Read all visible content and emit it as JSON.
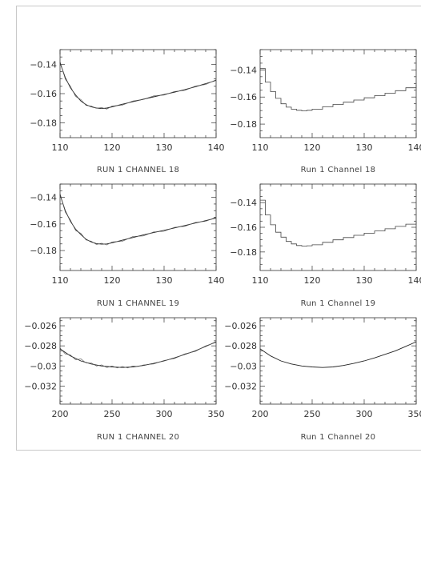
{
  "chart_data": [
    {
      "type": "line",
      "caption": "RUN 1 CHANNEL 18",
      "xlim": [
        110,
        140
      ],
      "ylim": [
        -0.19,
        -0.13
      ],
      "xticks": [
        110,
        120,
        130,
        140
      ],
      "xtick_labels": [
        "110",
        "120",
        "130",
        "140"
      ],
      "yticks": [
        -0.18,
        -0.16,
        -0.14
      ],
      "ytick_labels": [
        "-0.18",
        "-0.16",
        "-0.14"
      ],
      "series": [
        {
          "style": "line",
          "x": [
            110,
            111,
            112,
            113,
            114,
            115,
            116,
            117,
            118,
            119,
            120,
            122,
            124,
            126,
            128,
            130,
            132,
            134,
            136,
            138,
            140
          ],
          "y": [
            -0.139,
            -0.149,
            -0.156,
            -0.161,
            -0.165,
            -0.1675,
            -0.169,
            -0.1698,
            -0.1702,
            -0.1698,
            -0.169,
            -0.1672,
            -0.1655,
            -0.1638,
            -0.1622,
            -0.1606,
            -0.159,
            -0.1572,
            -0.1553,
            -0.1532,
            -0.151
          ]
        },
        {
          "style": "noise",
          "x": [
            110,
            111,
            112,
            113,
            114,
            115,
            116,
            117,
            118,
            119,
            120,
            122,
            124,
            126,
            128,
            130,
            132,
            134,
            136,
            138,
            140
          ],
          "y": [
            -0.138,
            -0.15,
            -0.155,
            -0.162,
            -0.164,
            -0.168,
            -0.1685,
            -0.17,
            -0.1695,
            -0.1705,
            -0.1685,
            -0.1678,
            -0.165,
            -0.164,
            -0.1615,
            -0.161,
            -0.1585,
            -0.1578,
            -0.1548,
            -0.1538,
            -0.1505
          ]
        }
      ]
    },
    {
      "type": "line",
      "caption": "Run 1 Channel 18",
      "xlim": [
        110,
        140
      ],
      "ylim": [
        -0.19,
        -0.125
      ],
      "xticks": [
        110,
        120,
        130,
        140
      ],
      "xtick_labels": [
        "110",
        "120",
        "130",
        "140"
      ],
      "yticks": [
        -0.18,
        -0.16,
        -0.14
      ],
      "ytick_labels": [
        "-0.18",
        "-0.16",
        "-0.14"
      ],
      "series": [
        {
          "style": "step",
          "x": [
            110,
            111,
            112,
            113,
            114,
            115,
            116,
            117,
            118,
            119,
            120,
            122,
            124,
            126,
            128,
            130,
            132,
            134,
            136,
            138,
            140
          ],
          "y": [
            -0.139,
            -0.149,
            -0.156,
            -0.161,
            -0.165,
            -0.1675,
            -0.169,
            -0.1698,
            -0.1702,
            -0.1698,
            -0.169,
            -0.1672,
            -0.1655,
            -0.1638,
            -0.1622,
            -0.1606,
            -0.159,
            -0.1572,
            -0.1553,
            -0.1532,
            -0.151
          ]
        }
      ]
    },
    {
      "type": "line",
      "caption": "RUN 1 CHANNEL 19",
      "xlim": [
        110,
        140
      ],
      "ylim": [
        -0.195,
        -0.13
      ],
      "xticks": [
        110,
        120,
        130,
        140
      ],
      "xtick_labels": [
        "110",
        "120",
        "130",
        "140"
      ],
      "yticks": [
        -0.18,
        -0.16,
        -0.14
      ],
      "ytick_labels": [
        "-0.18",
        "-0.16",
        "-0.14"
      ],
      "series": [
        {
          "style": "line",
          "x": [
            110,
            111,
            112,
            113,
            114,
            115,
            116,
            117,
            118,
            119,
            120,
            122,
            124,
            126,
            128,
            130,
            132,
            134,
            136,
            138,
            140
          ],
          "y": [
            -0.138,
            -0.15,
            -0.158,
            -0.164,
            -0.168,
            -0.1715,
            -0.1735,
            -0.1748,
            -0.1752,
            -0.175,
            -0.1742,
            -0.1722,
            -0.1702,
            -0.1683,
            -0.1665,
            -0.1648,
            -0.163,
            -0.1612,
            -0.1593,
            -0.1575,
            -0.1555
          ]
        },
        {
          "style": "noise",
          "x": [
            110,
            111,
            112,
            113,
            114,
            115,
            116,
            117,
            118,
            119,
            120,
            122,
            124,
            126,
            128,
            130,
            132,
            134,
            136,
            138,
            140
          ],
          "y": [
            -0.137,
            -0.151,
            -0.157,
            -0.165,
            -0.167,
            -0.172,
            -0.173,
            -0.1755,
            -0.1745,
            -0.1758,
            -0.1735,
            -0.173,
            -0.1695,
            -0.169,
            -0.166,
            -0.1655,
            -0.1625,
            -0.1618,
            -0.1588,
            -0.158,
            -0.155
          ]
        }
      ]
    },
    {
      "type": "line",
      "caption": "Run 1 Channel 19",
      "xlim": [
        110,
        140
      ],
      "ylim": [
        -0.195,
        -0.125
      ],
      "xticks": [
        110,
        120,
        130,
        140
      ],
      "xtick_labels": [
        "110",
        "120",
        "130",
        "140"
      ],
      "yticks": [
        -0.18,
        -0.16,
        -0.14
      ],
      "ytick_labels": [
        "-0.18",
        "-0.16",
        "-0.14"
      ],
      "series": [
        {
          "style": "step",
          "x": [
            110,
            111,
            112,
            113,
            114,
            115,
            116,
            117,
            118,
            119,
            120,
            122,
            124,
            126,
            128,
            130,
            132,
            134,
            136,
            138,
            140
          ],
          "y": [
            -0.138,
            -0.15,
            -0.158,
            -0.164,
            -0.168,
            -0.1715,
            -0.1735,
            -0.1748,
            -0.1752,
            -0.175,
            -0.1742,
            -0.1722,
            -0.1702,
            -0.1683,
            -0.1665,
            -0.1648,
            -0.163,
            -0.1612,
            -0.1593,
            -0.1575,
            -0.1555
          ]
        }
      ]
    },
    {
      "type": "line",
      "caption": "RUN 1 CHANNEL 20",
      "xlim": [
        200,
        350
      ],
      "ylim": [
        -0.0338,
        -0.0252
      ],
      "xticks": [
        200,
        250,
        300,
        350
      ],
      "xtick_labels": [
        "200",
        "250",
        "300",
        "350"
      ],
      "yticks": [
        -0.032,
        -0.03,
        -0.028,
        -0.026
      ],
      "ytick_labels": [
        "-0.032",
        "-0.03",
        "-0.028",
        "-0.026"
      ],
      "series": [
        {
          "style": "line",
          "x": [
            200,
            210,
            220,
            230,
            240,
            250,
            260,
            270,
            280,
            290,
            300,
            310,
            320,
            330,
            340,
            350
          ],
          "y": [
            -0.0283,
            -0.029,
            -0.0295,
            -0.0298,
            -0.03,
            -0.0301,
            -0.03015,
            -0.0301,
            -0.02995,
            -0.02975,
            -0.0295,
            -0.0292,
            -0.02885,
            -0.0285,
            -0.02805,
            -0.0276
          ]
        },
        {
          "style": "noise",
          "x": [
            200,
            205,
            210,
            215,
            220,
            225,
            230,
            235,
            240,
            245,
            250,
            255,
            260,
            265,
            270,
            275,
            280,
            290,
            300,
            310,
            320,
            330,
            340,
            350
          ],
          "y": [
            -0.0282,
            -0.0288,
            -0.0289,
            -0.0294,
            -0.0293,
            -0.0297,
            -0.0297,
            -0.03,
            -0.0299,
            -0.03015,
            -0.03,
            -0.0302,
            -0.03005,
            -0.0302,
            -0.03,
            -0.03005,
            -0.0299,
            -0.0298,
            -0.02945,
            -0.02925,
            -0.0288,
            -0.02855,
            -0.028,
            -0.02765
          ]
        }
      ]
    },
    {
      "type": "line",
      "caption": "Run 1 Channel 20",
      "xlim": [
        200,
        350
      ],
      "ylim": [
        -0.0338,
        -0.0252
      ],
      "xticks": [
        200,
        250,
        300,
        350
      ],
      "xtick_labels": [
        "200",
        "250",
        "300",
        "350"
      ],
      "yticks": [
        -0.032,
        -0.03,
        -0.028,
        -0.026
      ],
      "ytick_labels": [
        "-0.032",
        "-0.03",
        "-0.028",
        "-0.026"
      ],
      "series": [
        {
          "style": "line",
          "x": [
            200,
            210,
            220,
            230,
            240,
            250,
            260,
            270,
            280,
            290,
            300,
            310,
            320,
            330,
            340,
            350
          ],
          "y": [
            -0.0283,
            -0.029,
            -0.0295,
            -0.0298,
            -0.03,
            -0.0301,
            -0.03015,
            -0.0301,
            -0.02995,
            -0.02975,
            -0.0295,
            -0.0292,
            -0.02885,
            -0.0285,
            -0.02805,
            -0.0276
          ]
        }
      ]
    }
  ]
}
